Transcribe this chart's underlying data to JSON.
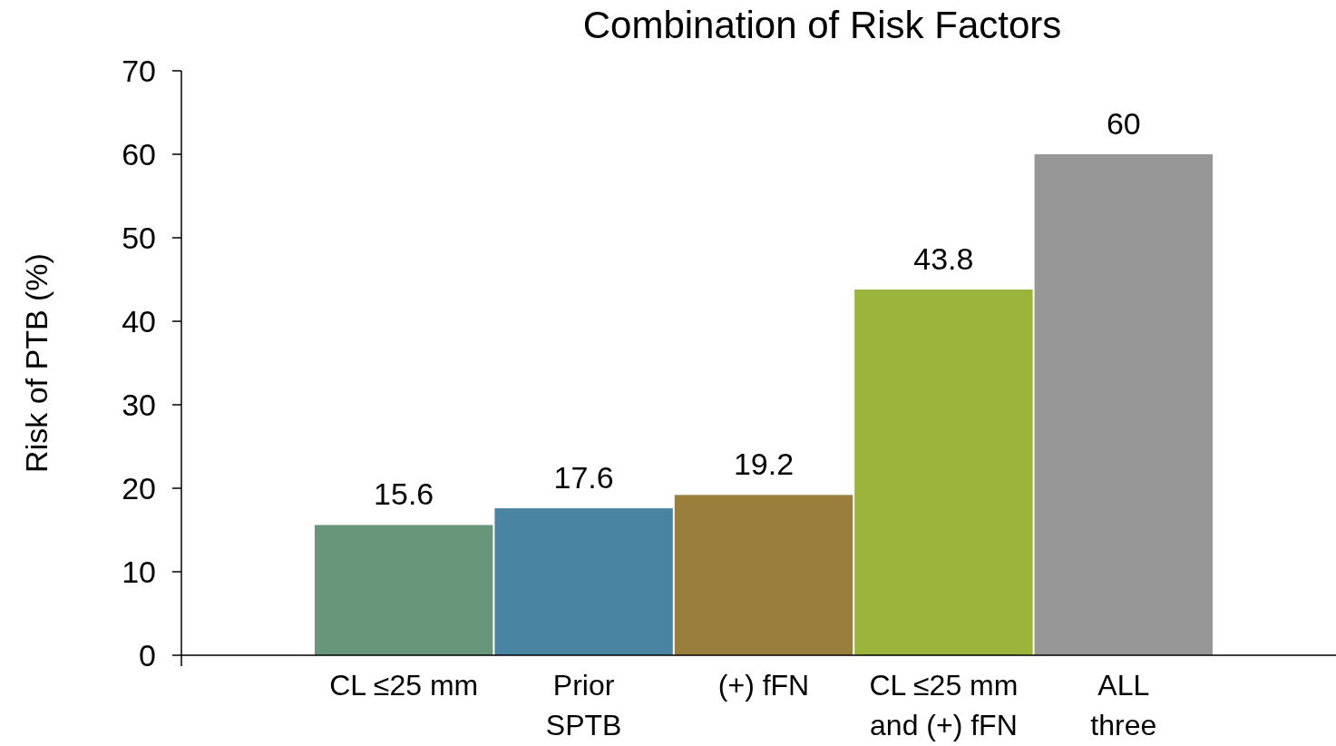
{
  "chart_data": {
    "type": "bar",
    "title": "Combination of Risk Factors",
    "ylabel": "Risk of  PTB  (%)",
    "categories": [
      "CL ≤25 mm",
      "Prior\nSPTB",
      "(+) fFN",
      "CL ≤25 mm\nand (+) fFN",
      "ALL\nthree"
    ],
    "values": [
      15.6,
      17.6,
      19.2,
      43.8,
      60
    ],
    "colors": [
      "#68967a",
      "#4a84a3",
      "#9a7e3c",
      "#9bb43b",
      "#979797"
    ],
    "ylim": [
      0,
      70
    ],
    "yticks": [
      0,
      10,
      20,
      30,
      40,
      50,
      60,
      70
    ],
    "data_labels": true,
    "grid": false
  }
}
